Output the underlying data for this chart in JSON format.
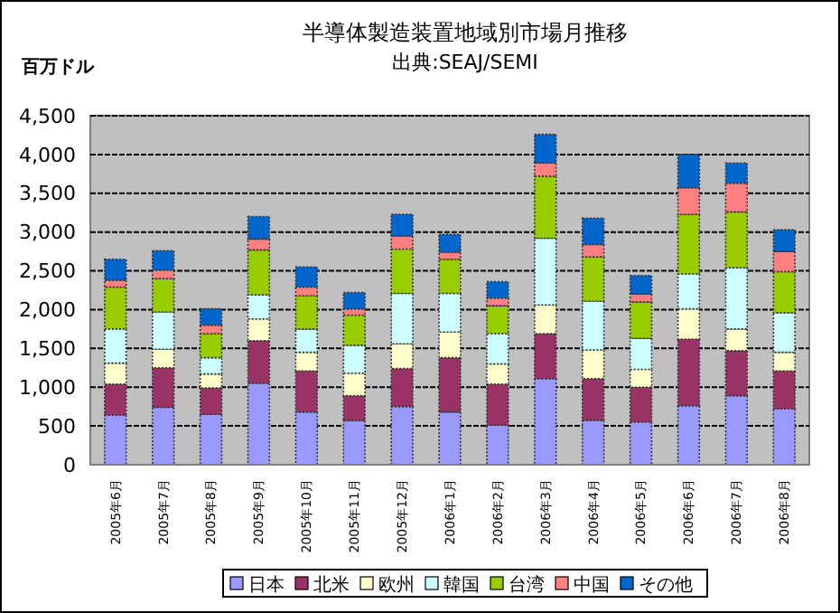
{
  "chart_data": {
    "type": "bar",
    "stacked": true,
    "title": "半導体製造装置地域別市場月推移",
    "subtitle": "出典:SEAJ/SEMI",
    "ylabel": "百万ドル",
    "categories": [
      "2005年6月",
      "2005年7月",
      "2005年8月",
      "2005年9月",
      "2005年10月",
      "2005年11月",
      "2005年12月",
      "2006年1月",
      "2006年2月",
      "2006年3月",
      "2006年4月",
      "2006年5月",
      "2006年6月",
      "2006年7月",
      "2006年8月"
    ],
    "series": [
      {
        "name": "日本",
        "color": "#9999ff",
        "values": [
          640,
          740,
          650,
          1050,
          680,
          570,
          750,
          680,
          510,
          1110,
          570,
          550,
          760,
          890,
          720
        ]
      },
      {
        "name": "北米",
        "color": "#993366",
        "values": [
          400,
          510,
          340,
          550,
          530,
          320,
          490,
          700,
          530,
          580,
          540,
          450,
          860,
          580,
          490
        ]
      },
      {
        "name": "欧州",
        "color": "#ffffcc",
        "values": [
          270,
          240,
          180,
          280,
          240,
          290,
          320,
          330,
          260,
          370,
          370,
          230,
          390,
          280,
          240
        ]
      },
      {
        "name": "韓国",
        "color": "#ccffff",
        "values": [
          440,
          480,
          210,
          310,
          300,
          360,
          650,
          500,
          390,
          860,
          630,
          400,
          450,
          790,
          510
        ]
      },
      {
        "name": "台湾",
        "color": "#99cc00",
        "values": [
          540,
          430,
          310,
          580,
          430,
          390,
          570,
          440,
          360,
          800,
          570,
          470,
          770,
          720,
          530
        ]
      },
      {
        "name": "中国",
        "color": "#ff8080",
        "values": [
          90,
          110,
          110,
          140,
          110,
          80,
          170,
          90,
          100,
          170,
          160,
          100,
          340,
          370,
          260
        ]
      },
      {
        "name": "その他",
        "color": "#0066cc",
        "values": [
          270,
          250,
          210,
          290,
          260,
          210,
          280,
          230,
          210,
          370,
          340,
          240,
          430,
          260,
          280
        ]
      }
    ],
    "ylim": [
      0,
      4500
    ],
    "yticks": [
      0,
      500,
      {
        "value": 1000,
        "label": "1,000"
      },
      {
        "value": 1500,
        "label": "1,500"
      },
      {
        "value": 2000,
        "label": "2,000"
      },
      {
        "value": 2500,
        "label": "2,500"
      },
      {
        "value": 3000,
        "label": "3,000"
      },
      {
        "value": 3500,
        "label": "3,500"
      },
      {
        "value": 4000,
        "label": "4,000"
      },
      {
        "value": 4500,
        "label": "4,500"
      }
    ],
    "grid": "y",
    "legend": "bottom"
  }
}
